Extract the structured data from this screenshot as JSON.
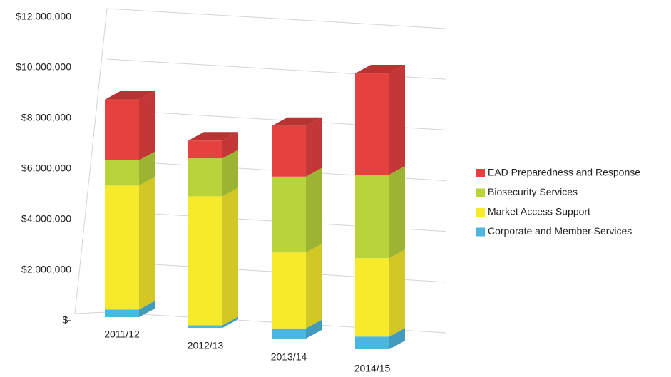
{
  "chart_data": {
    "type": "bar3d_stacked",
    "categories": [
      "2011/12",
      "2012/13",
      "2013/14",
      "2014/15"
    ],
    "series": [
      {
        "name": "Corporate and Member Services",
        "color": "#4cb6de",
        "values": [
          300000,
          100000,
          400000,
          500000
        ]
      },
      {
        "name": "Market Access Support",
        "color": "#f7ea2a",
        "values": [
          4900000,
          5100000,
          3000000,
          3100000
        ]
      },
      {
        "name": "Biosecurity Services",
        "color": "#b8d43a",
        "values": [
          1000000,
          1500000,
          3000000,
          3300000
        ]
      },
      {
        "name": "EAD Preparedness and Response",
        "color": "#e5413f",
        "values": [
          2400000,
          700000,
          2000000,
          4000000
        ]
      }
    ],
    "ylim": [
      0,
      12000000
    ],
    "yticks": [
      {
        "value": 0,
        "label": "$-"
      },
      {
        "value": 2000000,
        "label": "$2,000,000"
      },
      {
        "value": 4000000,
        "label": "$4,000,000"
      },
      {
        "value": 6000000,
        "label": "$6,000,000"
      },
      {
        "value": 8000000,
        "label": "$8,000,000"
      },
      {
        "value": 10000000,
        "label": "$10,000,000"
      },
      {
        "value": 12000000,
        "label": "$12,000,000"
      }
    ],
    "grid": true,
    "legend": "right"
  }
}
